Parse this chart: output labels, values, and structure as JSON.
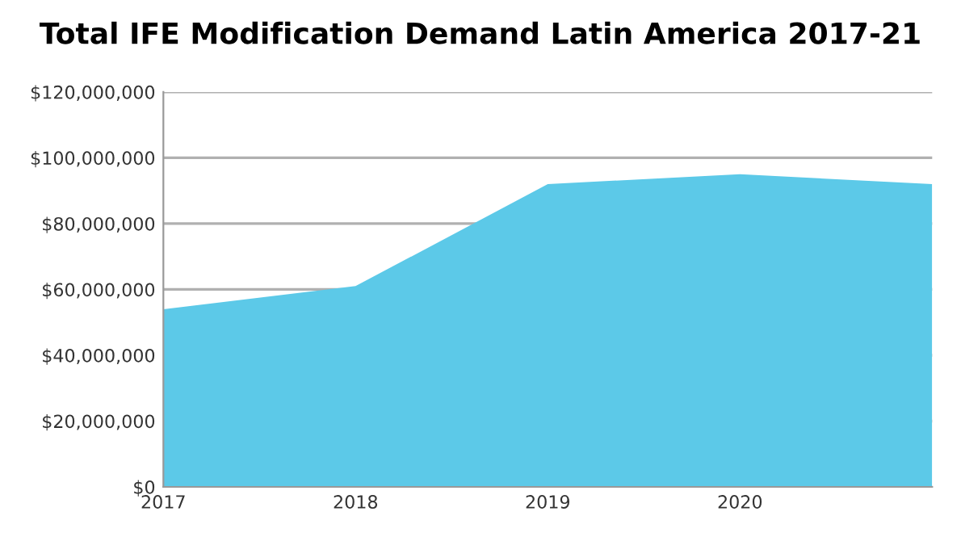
{
  "chart_data": {
    "type": "area",
    "title": "Total IFE Modification Demand Latin America 2017-21",
    "categories": [
      "2017",
      "2018",
      "2019",
      "2020",
      null
    ],
    "series": [
      {
        "color": "#5cc9e8",
        "values": [
          54000000,
          61000000,
          92000000,
          95000000,
          92000000
        ]
      }
    ],
    "ylim": [
      0,
      120000000
    ],
    "yticks": [
      {
        "value": 0,
        "label": "$0"
      },
      {
        "value": 20000000,
        "label": "$20,000,000"
      },
      {
        "value": 40000000,
        "label": "$40,000,000"
      },
      {
        "value": 60000000,
        "label": "$60,000,000"
      },
      {
        "value": 80000000,
        "label": "$80,000,000"
      },
      {
        "value": 100000000,
        "label": "$100,000,000"
      },
      {
        "value": 120000000,
        "label": "$120,000,000"
      }
    ],
    "grid": "y",
    "legend": false
  }
}
